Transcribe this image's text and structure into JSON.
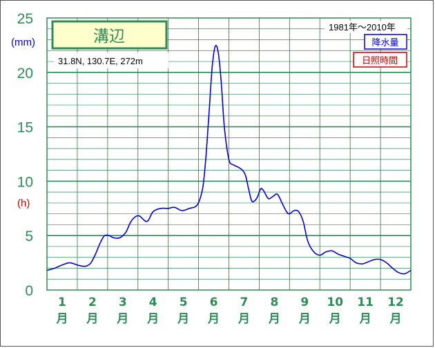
{
  "chart_data": {
    "type": "line",
    "station": "溝辺",
    "location": "31.8N,  130.7E,  272m",
    "period": "1981年〜2010年",
    "legend": [
      {
        "label": "降水量",
        "color": "#0000cc"
      },
      {
        "label": "日照時間",
        "color": "#cc0000"
      }
    ],
    "y_unit_left": "(mm)",
    "y_unit_sunshine": "(h)",
    "yticks": [
      "0",
      "5",
      "10",
      "15",
      "20",
      "25"
    ],
    "ylim": [
      0,
      25
    ],
    "xlim": [
      1,
      13
    ],
    "months": [
      {
        "num": "1",
        "kanji": "月"
      },
      {
        "num": "2",
        "kanji": "月"
      },
      {
        "num": "3",
        "kanji": "月"
      },
      {
        "num": "4",
        "kanji": "月"
      },
      {
        "num": "5",
        "kanji": "月"
      },
      {
        "num": "6",
        "kanji": "月"
      },
      {
        "num": "7",
        "kanji": "月"
      },
      {
        "num": "8",
        "kanji": "月"
      },
      {
        "num": "9",
        "kanji": "月"
      },
      {
        "num": "10",
        "kanji": "月"
      },
      {
        "num": "11",
        "kanji": "月"
      },
      {
        "num": "12",
        "kanji": "月"
      }
    ],
    "grid": true,
    "series": [
      {
        "color": "#0000cc",
        "x": [
          1.0,
          1.25,
          1.5,
          1.75,
          2.0,
          2.15,
          2.3,
          2.45,
          2.6,
          2.75,
          2.9,
          3.05,
          3.2,
          3.4,
          3.6,
          3.75,
          3.9,
          4.05,
          4.3,
          4.5,
          4.75,
          5.0,
          5.2,
          5.45,
          5.7,
          5.85,
          5.95,
          6.05,
          6.15,
          6.25,
          6.35,
          6.45,
          6.55,
          6.65,
          6.75,
          6.85,
          7.0,
          7.15,
          7.3,
          7.45,
          7.55,
          7.65,
          7.75,
          7.85,
          7.95,
          8.05,
          8.15,
          8.3,
          8.45,
          8.6,
          8.75,
          8.9,
          9.0,
          9.15,
          9.3,
          9.45,
          9.6,
          9.8,
          10.0,
          10.2,
          10.4,
          10.6,
          10.8,
          11.0,
          11.2,
          11.4,
          11.6,
          11.8,
          12.0,
          12.2,
          12.4,
          12.6,
          12.8,
          13.0
        ],
        "values": [
          1.8,
          2.0,
          2.3,
          2.5,
          2.3,
          2.2,
          2.2,
          2.5,
          3.3,
          4.3,
          5.0,
          5.0,
          4.8,
          4.8,
          5.3,
          6.2,
          6.7,
          6.8,
          6.3,
          7.2,
          7.5,
          7.5,
          7.6,
          7.3,
          7.5,
          7.6,
          7.8,
          8.4,
          9.6,
          12.5,
          16.5,
          20.5,
          22.4,
          21.8,
          19.0,
          15.0,
          12.0,
          11.5,
          11.3,
          11.0,
          10.5,
          9.3,
          8.2,
          8.2,
          8.6,
          9.3,
          9.1,
          8.4,
          8.6,
          8.8,
          8.0,
          7.2,
          7.0,
          7.3,
          7.2,
          6.3,
          4.5,
          3.5,
          3.2,
          3.5,
          3.6,
          3.3,
          3.1,
          2.9,
          2.5,
          2.4,
          2.6,
          2.8,
          2.8,
          2.5,
          2.0,
          1.6,
          1.5,
          1.8
        ]
      }
    ]
  }
}
